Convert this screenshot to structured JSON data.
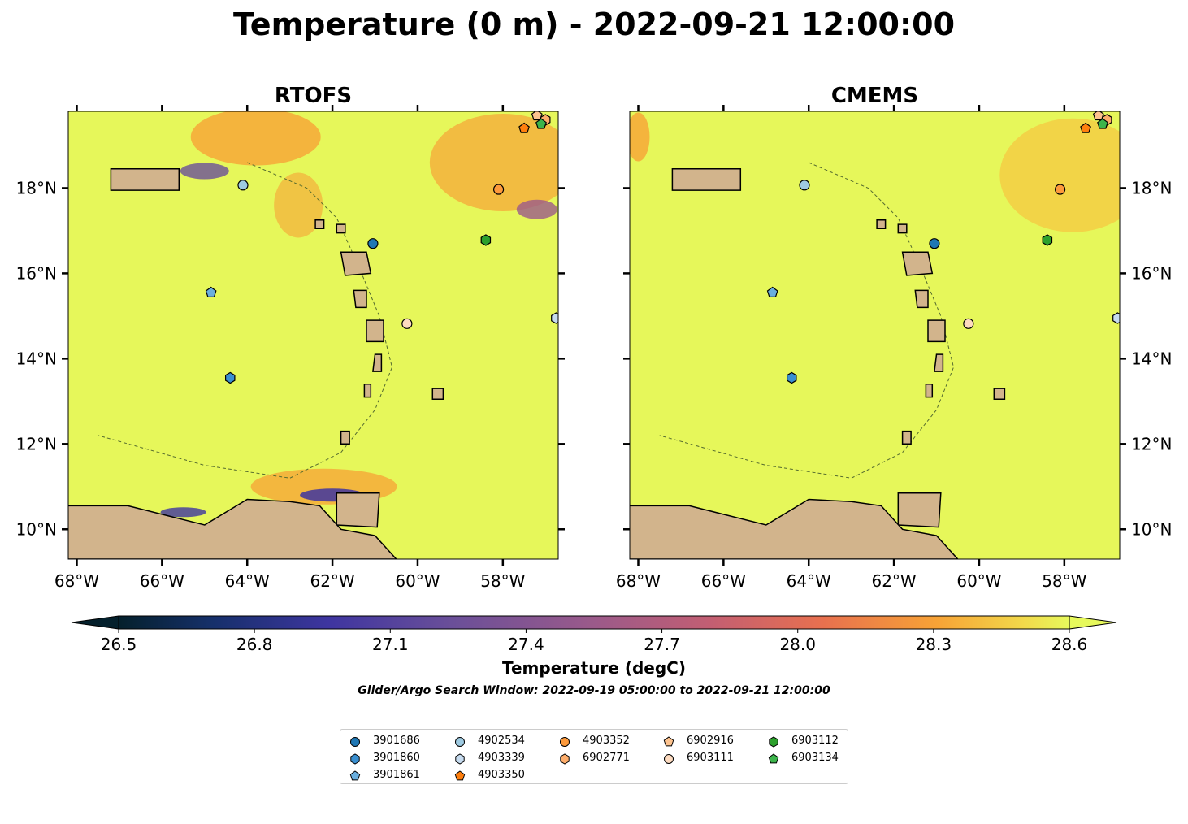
{
  "title": "Temperature (0 m) - 2022-09-21 12:00:00",
  "panels": [
    {
      "title": "RTOFS"
    },
    {
      "title": "CMEMS"
    }
  ],
  "axes": {
    "x_ticks": [
      "68°W",
      "66°W",
      "64°W",
      "62°W",
      "60°W",
      "58°W"
    ],
    "y_ticks": [
      "18°N",
      "16°N",
      "14°N",
      "12°N",
      "10°N"
    ],
    "xlim": [
      -68.2,
      -56.7
    ],
    "ylim": [
      9.3,
      19.8
    ]
  },
  "colorbar": {
    "label": "Temperature (degC)",
    "ticks": [
      "26.5",
      "26.8",
      "27.1",
      "27.4",
      "27.7",
      "28.0",
      "28.3",
      "28.6"
    ],
    "range": [
      26.5,
      28.6
    ],
    "colormap": "thermal",
    "extend": "both"
  },
  "subtitle": "Glider/Argo Search Window: 2022-09-19 05:00:00 to 2022-09-21 12:00:00",
  "colors": {
    "sea_background": "#e6f75a",
    "land": "#d2b48c",
    "contour": "#556b2f"
  },
  "chart_data": {
    "type": "scatter",
    "x_label": "",
    "y_label": "",
    "series": [
      {
        "name": "3901686",
        "marker": "circle",
        "color": "#1f77b4",
        "x": -61.05,
        "y": 16.7
      },
      {
        "name": "3901860",
        "marker": "hexagon",
        "color": "#3a8fd0",
        "x": -64.4,
        "y": 13.55
      },
      {
        "name": "3901861",
        "marker": "pentagon",
        "color": "#6aaede",
        "x": -64.85,
        "y": 15.55
      },
      {
        "name": "4902534",
        "marker": "circle",
        "color": "#9ecae1",
        "x": -64.1,
        "y": 18.07
      },
      {
        "name": "4903339",
        "marker": "hexagon",
        "color": "#c6dbef",
        "x": -56.75,
        "y": 14.95
      },
      {
        "name": "4903350",
        "marker": "pentagon",
        "color": "#ff7f0e",
        "x": -57.5,
        "y": 19.4
      },
      {
        "name": "4903352",
        "marker": "circle",
        "color": "#fd9a3c",
        "x": -58.1,
        "y": 17.97
      },
      {
        "name": "6902771",
        "marker": "hexagon",
        "color": "#fdad6b",
        "x": -57.0,
        "y": 19.6
      },
      {
        "name": "6902916",
        "marker": "pentagon",
        "color": "#fdc38f",
        "x": -57.2,
        "y": 19.7
      },
      {
        "name": "6903111",
        "marker": "circle",
        "color": "#fddbc0",
        "x": -60.25,
        "y": 14.82
      },
      {
        "name": "6903112",
        "marker": "hexagon",
        "color": "#2ca02c",
        "x": -58.4,
        "y": 16.78
      },
      {
        "name": "6903134",
        "marker": "pentagon",
        "color": "#3cb44b",
        "x": -57.1,
        "y": 19.5
      }
    ]
  }
}
